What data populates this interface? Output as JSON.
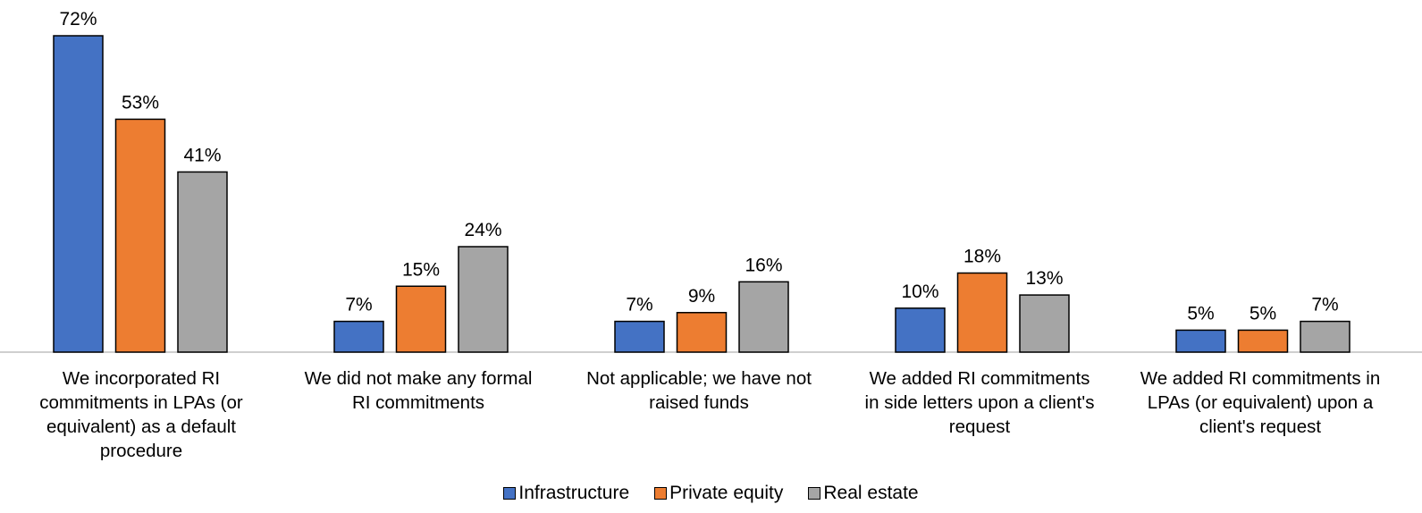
{
  "chart_data": {
    "type": "bar",
    "categories": [
      "We incorporated RI\ncommitments in LPAs (or\nequivalent) as a default\nprocedure",
      "We did not make any formal\nRI commitments",
      "Not applicable; we have not\nraised funds",
      "We added RI  commitments\nin side letters upon a client's\nrequest",
      "We added RI commitments in\nLPAs (or equivalent) upon a\nclient's request"
    ],
    "series": [
      {
        "name": "Infrastructure",
        "color": "#4472C4",
        "values": [
          72,
          7,
          7,
          10,
          5
        ],
        "labels": [
          "72%",
          "7%",
          "7%",
          "10%",
          "5%"
        ]
      },
      {
        "name": "Private equity",
        "color": "#ED7D31",
        "values": [
          53,
          15,
          9,
          18,
          5
        ],
        "labels": [
          "53%",
          "15%",
          "9%",
          "18%",
          "5%"
        ]
      },
      {
        "name": "Real estate",
        "color": "#A5A5A5",
        "values": [
          41,
          24,
          16,
          13,
          7
        ],
        "labels": [
          "41%",
          "24%",
          "16%",
          "13%",
          "7%"
        ]
      }
    ],
    "ylim": [
      0,
      72
    ],
    "grid": false,
    "legend_position": "bottom"
  }
}
